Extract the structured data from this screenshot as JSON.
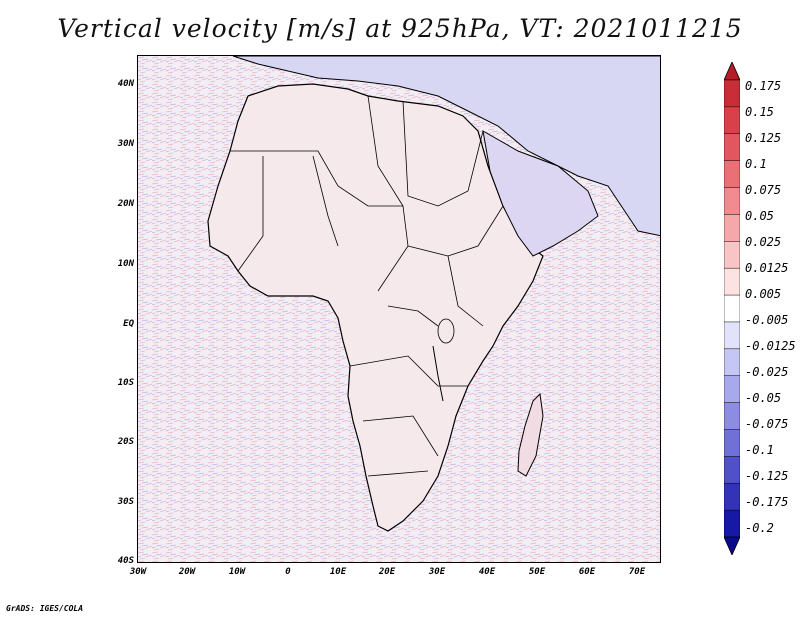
{
  "title": "Vertical velocity [m/s] at 925hPa, VT: 2021011215",
  "footer": "GrADS: IGES/COLA",
  "map": {
    "lat_labels": [
      "40N",
      "30N",
      "20N",
      "10N",
      "EQ",
      "10S",
      "20S",
      "30S",
      "40S"
    ],
    "lon_labels": [
      "30W",
      "20W",
      "10W",
      "0",
      "10E",
      "20E",
      "30E",
      "40E",
      "50E",
      "60E",
      "70E"
    ],
    "region": "Africa, Arabian Peninsula and surrounding oceans"
  },
  "colorbar": {
    "labels": [
      "0.175",
      "0.15",
      "0.125",
      "0.1",
      "0.075",
      "0.05",
      "0.025",
      "0.0125",
      "0.005",
      "-0.005",
      "-0.0125",
      "-0.025",
      "-0.05",
      "-0.075",
      "-0.1",
      "-0.125",
      "-0.175",
      "-0.2"
    ],
    "colors": [
      "#b51c2a",
      "#c92e38",
      "#d8414a",
      "#e2575f",
      "#eb7076",
      "#f08b8f",
      "#f5a7a9",
      "#f9c4c5",
      "#fde2e2",
      "#ffffff",
      "#e2e2fa",
      "#c6c6f4",
      "#a8a8ec",
      "#8c8ce2",
      "#7070d6",
      "#5050c8",
      "#3333b8",
      "#1818a6",
      "#0a0a8f"
    ]
  }
}
